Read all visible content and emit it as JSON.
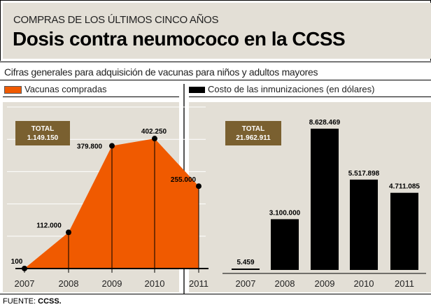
{
  "header": {
    "kicker": "COMPRAS DE LOS ÚLTIMOS CINCO AÑOS",
    "title": "Dosis contra neumococo en la CCSS",
    "subtitle": "Cifras generales para adquisición de vacunas para niños y adultos mayores"
  },
  "footer": {
    "label": "FUENTE:",
    "source": "CCSS."
  },
  "colors": {
    "orange": "#f05a00",
    "black": "#000000",
    "panel": "#e3dfd6",
    "total_box": "#7a6030"
  },
  "chart_data": [
    {
      "type": "area",
      "legend": "Vacunas compradas",
      "categories": [
        "2007",
        "2008",
        "2009",
        "2010",
        "2011"
      ],
      "values": [
        100,
        112000,
        379800,
        402250,
        255000
      ],
      "labels": [
        "100",
        "112.000",
        "379.800",
        "402.250",
        "255.000"
      ],
      "ylim": [
        0,
        500000
      ],
      "grid": true,
      "total_label": "TOTAL",
      "total_value": "1.149.150"
    },
    {
      "type": "bar",
      "legend": "Costo de las inmunizaciones (en dólares)",
      "categories": [
        "2007",
        "2008",
        "2009",
        "2010",
        "2011"
      ],
      "values": [
        5459,
        3100000,
        8628469,
        5517898,
        4711085
      ],
      "labels": [
        "5.459",
        "3.100.000",
        "8.628.469",
        "5.517.898",
        "4.711.085"
      ],
      "grid": false,
      "total_label": "TOTAL",
      "total_value": "21.962.911"
    }
  ]
}
